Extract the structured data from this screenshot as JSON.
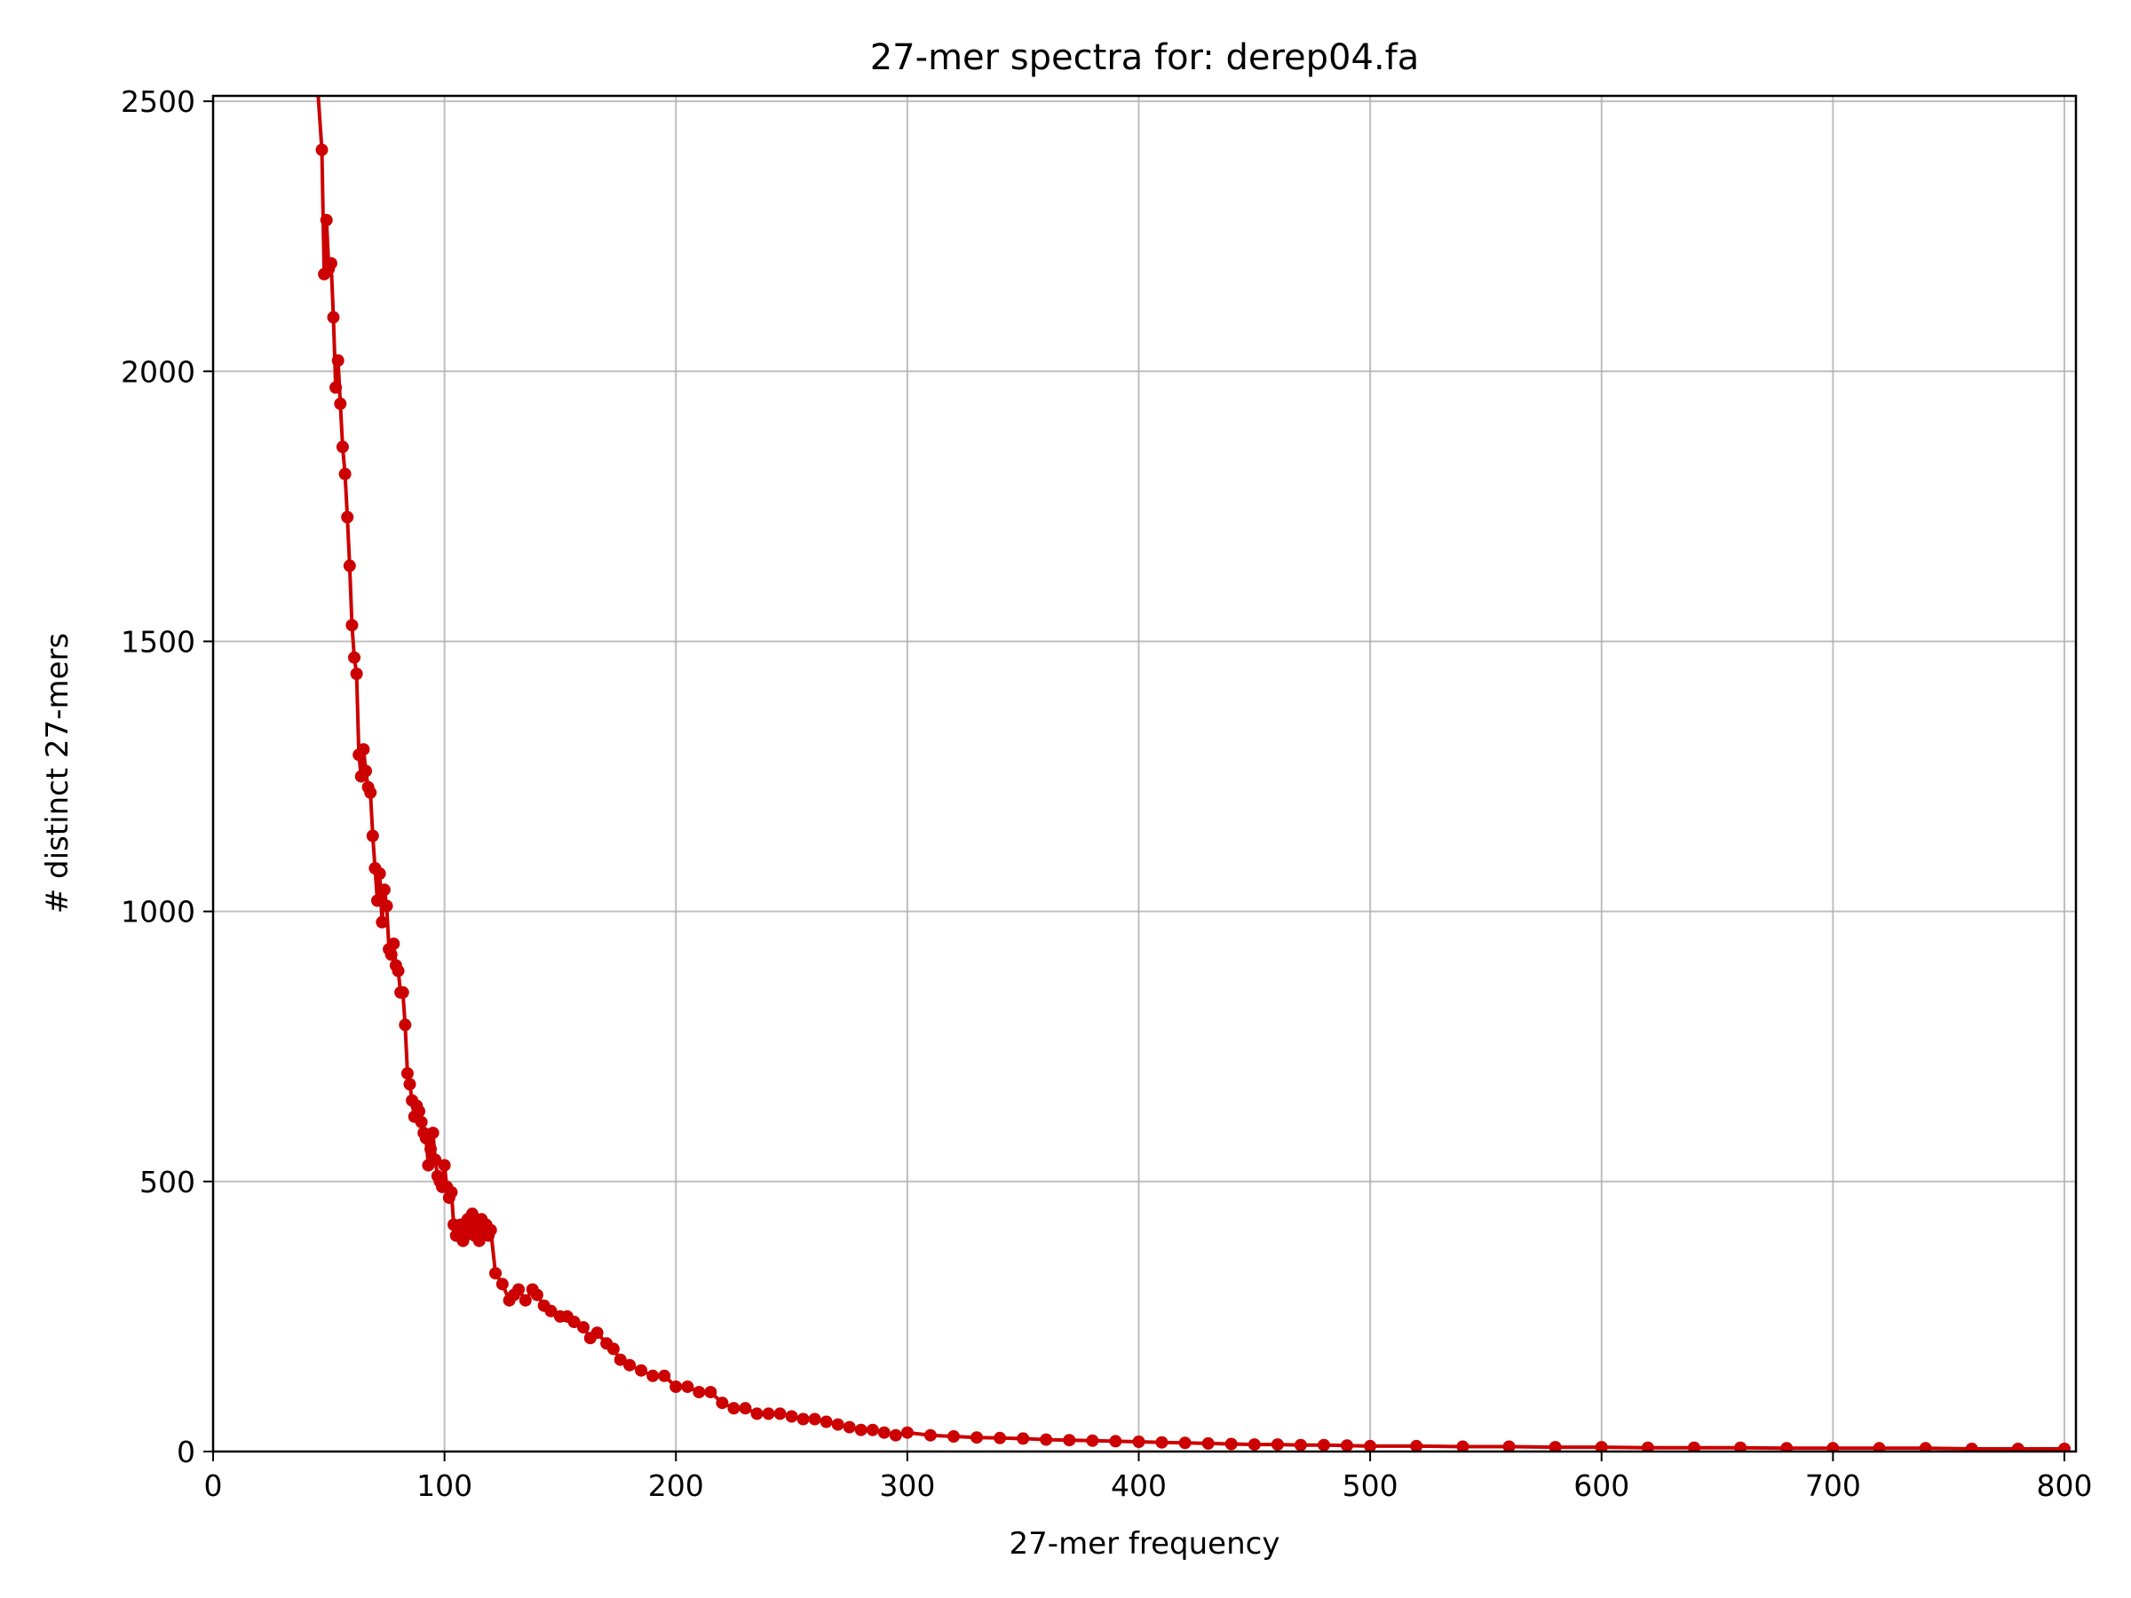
{
  "chart_data": {
    "type": "line",
    "title": "27-mer spectra for: derep04.fa",
    "xlabel": "27-mer frequency",
    "ylabel": "# distinct 27-mers",
    "xlim": [
      0,
      805
    ],
    "ylim": [
      0,
      2510
    ],
    "xticks": [
      0,
      100,
      200,
      300,
      400,
      500,
      600,
      700,
      800
    ],
    "yticks": [
      0,
      500,
      1000,
      1500,
      2000,
      2500
    ],
    "grid": true,
    "color": "#cc0000",
    "marker": "circle",
    "series": [
      {
        "x": [
          44,
          47,
          48,
          49,
          50,
          51,
          52,
          53,
          54,
          55,
          56,
          57,
          58,
          59,
          60,
          61,
          62,
          63,
          64,
          65,
          66,
          67,
          68,
          69,
          70,
          71,
          72,
          73,
          74,
          75,
          76,
          77,
          78,
          79,
          80,
          81,
          82,
          83,
          84,
          85,
          86,
          87,
          88,
          89,
          90,
          91,
          92,
          93,
          94,
          95,
          96,
          97,
          98,
          99,
          100,
          101,
          102,
          103,
          104,
          105,
          106,
          107,
          108,
          109,
          110,
          111,
          112,
          113,
          114,
          115,
          116,
          117,
          118,
          119,
          120,
          122,
          125,
          128,
          130,
          132,
          135,
          138,
          140,
          143,
          146,
          150,
          153,
          156,
          160,
          163,
          166,
          170,
          173,
          176,
          180,
          185,
          190,
          195,
          200,
          205,
          210,
          215,
          220,
          225,
          230,
          235,
          240,
          245,
          250,
          255,
          260,
          265,
          270,
          275,
          280,
          285,
          290,
          295,
          300,
          310,
          320,
          330,
          340,
          350,
          360,
          370,
          380,
          390,
          400,
          410,
          420,
          430,
          440,
          450,
          460,
          470,
          480,
          490,
          500,
          520,
          540,
          560,
          580,
          600,
          620,
          640,
          660,
          680,
          700,
          720,
          740,
          760,
          780,
          800
        ],
        "y": [
          2600,
          2410,
          2180,
          2280,
          2190,
          2200,
          2100,
          1970,
          2020,
          1940,
          1860,
          1810,
          1730,
          1640,
          1530,
          1470,
          1440,
          1290,
          1250,
          1300,
          1260,
          1230,
          1220,
          1140,
          1080,
          1020,
          1070,
          980,
          1040,
          1010,
          930,
          920,
          940,
          900,
          890,
          850,
          850,
          790,
          700,
          680,
          650,
          620,
          640,
          630,
          610,
          590,
          580,
          530,
          560,
          590,
          540,
          510,
          500,
          490,
          530,
          490,
          470,
          480,
          420,
          400,
          410,
          420,
          390,
          400,
          430,
          410,
          440,
          400,
          420,
          390,
          430,
          410,
          420,
          400,
          410,
          330,
          310,
          280,
          290,
          300,
          280,
          300,
          290,
          270,
          260,
          250,
          250,
          240,
          230,
          210,
          220,
          200,
          190,
          170,
          160,
          150,
          140,
          140,
          120,
          120,
          110,
          110,
          90,
          80,
          80,
          70,
          70,
          70,
          65,
          60,
          60,
          55,
          50,
          45,
          40,
          40,
          35,
          30,
          35,
          30,
          28,
          26,
          25,
          24,
          22,
          21,
          20,
          19,
          18,
          17,
          16,
          15,
          14,
          13,
          13,
          12,
          12,
          11,
          10,
          10,
          9,
          9,
          8,
          8,
          7,
          7,
          7,
          6,
          6,
          6,
          6,
          5,
          5,
          5
        ]
      }
    ]
  }
}
